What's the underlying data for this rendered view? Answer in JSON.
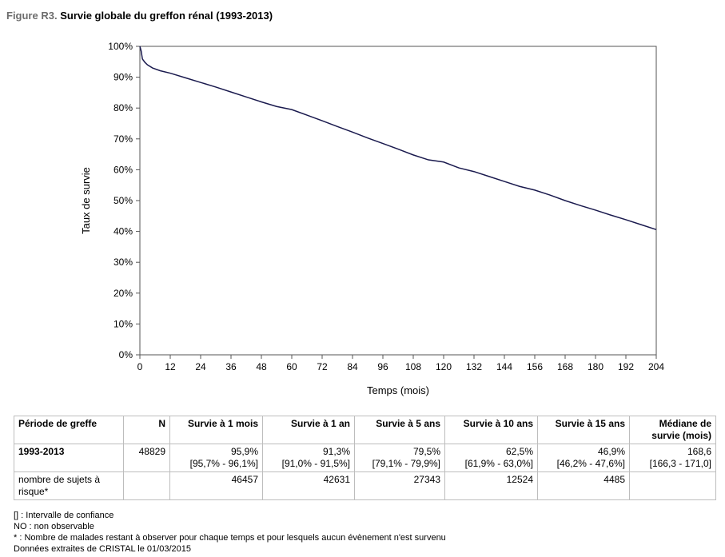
{
  "figure": {
    "prefix": "Figure R3.",
    "title": "Survie globale du greffon rénal (1993-2013)"
  },
  "chart_data": {
    "type": "line",
    "xlabel": "Temps (mois)",
    "ylabel": "Taux de survie",
    "xlim": [
      0,
      204
    ],
    "ylim": [
      0,
      100
    ],
    "xticks": [
      "0",
      "12",
      "24",
      "36",
      "48",
      "60",
      "72",
      "84",
      "96",
      "108",
      "120",
      "132",
      "144",
      "156",
      "168",
      "180",
      "192",
      "204"
    ],
    "xtick_values": [
      0,
      12,
      24,
      36,
      48,
      60,
      72,
      84,
      96,
      108,
      120,
      132,
      144,
      156,
      168,
      180,
      192,
      204
    ],
    "yticks": [
      "0%",
      "10%",
      "20%",
      "30%",
      "40%",
      "50%",
      "60%",
      "70%",
      "80%",
      "90%",
      "100%"
    ],
    "ytick_values": [
      0,
      10,
      20,
      30,
      40,
      50,
      60,
      70,
      80,
      90,
      100
    ],
    "grid": false,
    "series": [
      {
        "color": "#1a1a4e",
        "x": [
          0,
          0.5,
          1,
          2,
          3,
          5,
          8,
          12,
          18,
          24,
          30,
          36,
          42,
          48,
          54,
          60,
          66,
          72,
          78,
          84,
          90,
          96,
          102,
          108,
          114,
          120,
          126,
          132,
          138,
          144,
          150,
          156,
          162,
          168,
          174,
          180,
          186,
          192,
          198,
          204
        ],
        "y": [
          100,
          98.5,
          95.9,
          94.8,
          94.0,
          93.0,
          92.1,
          91.3,
          89.8,
          88.3,
          86.8,
          85.2,
          83.6,
          82.0,
          80.5,
          79.5,
          77.7,
          75.9,
          74.0,
          72.2,
          70.3,
          68.5,
          66.7,
          64.8,
          63.2,
          62.5,
          60.6,
          59.4,
          57.8,
          56.2,
          54.6,
          53.4,
          51.8,
          50.0,
          48.4,
          46.9,
          45.3,
          43.8,
          42.2,
          40.6
        ]
      }
    ]
  },
  "table": {
    "headers": [
      "Période de greffe",
      "N",
      "Survie à 1 mois",
      "Survie à 1 an",
      "Survie à 5 ans",
      "Survie à 10 ans",
      "Survie à 15 ans",
      "Médiane de survie (mois)"
    ],
    "row1": {
      "period": "1993-2013",
      "n": "48829",
      "values": [
        "95,9%",
        "91,3%",
        "79,5%",
        "62,5%",
        "46,9%",
        "168,6"
      ],
      "ci": [
        "[95,7% - 96,1%]",
        "[91,0% - 91,5%]",
        "[79,1% - 79,9%]",
        "[61,9% - 63,0%]",
        "[46,2% - 47,6%]",
        "[166,3 - 171,0]"
      ]
    },
    "row2": {
      "label": "nombre de sujets à risque*",
      "n": "",
      "values": [
        "46457",
        "42631",
        "27343",
        "12524",
        "4485",
        ""
      ]
    }
  },
  "footnotes": [
    "[] : Intervalle de confiance",
    "NO : non observable",
    "* : Nombre de malades restant à observer pour chaque temps et pour lesquels aucun évènement n'est survenu",
    "Données extraites de CRISTAL le 01/03/2015"
  ]
}
